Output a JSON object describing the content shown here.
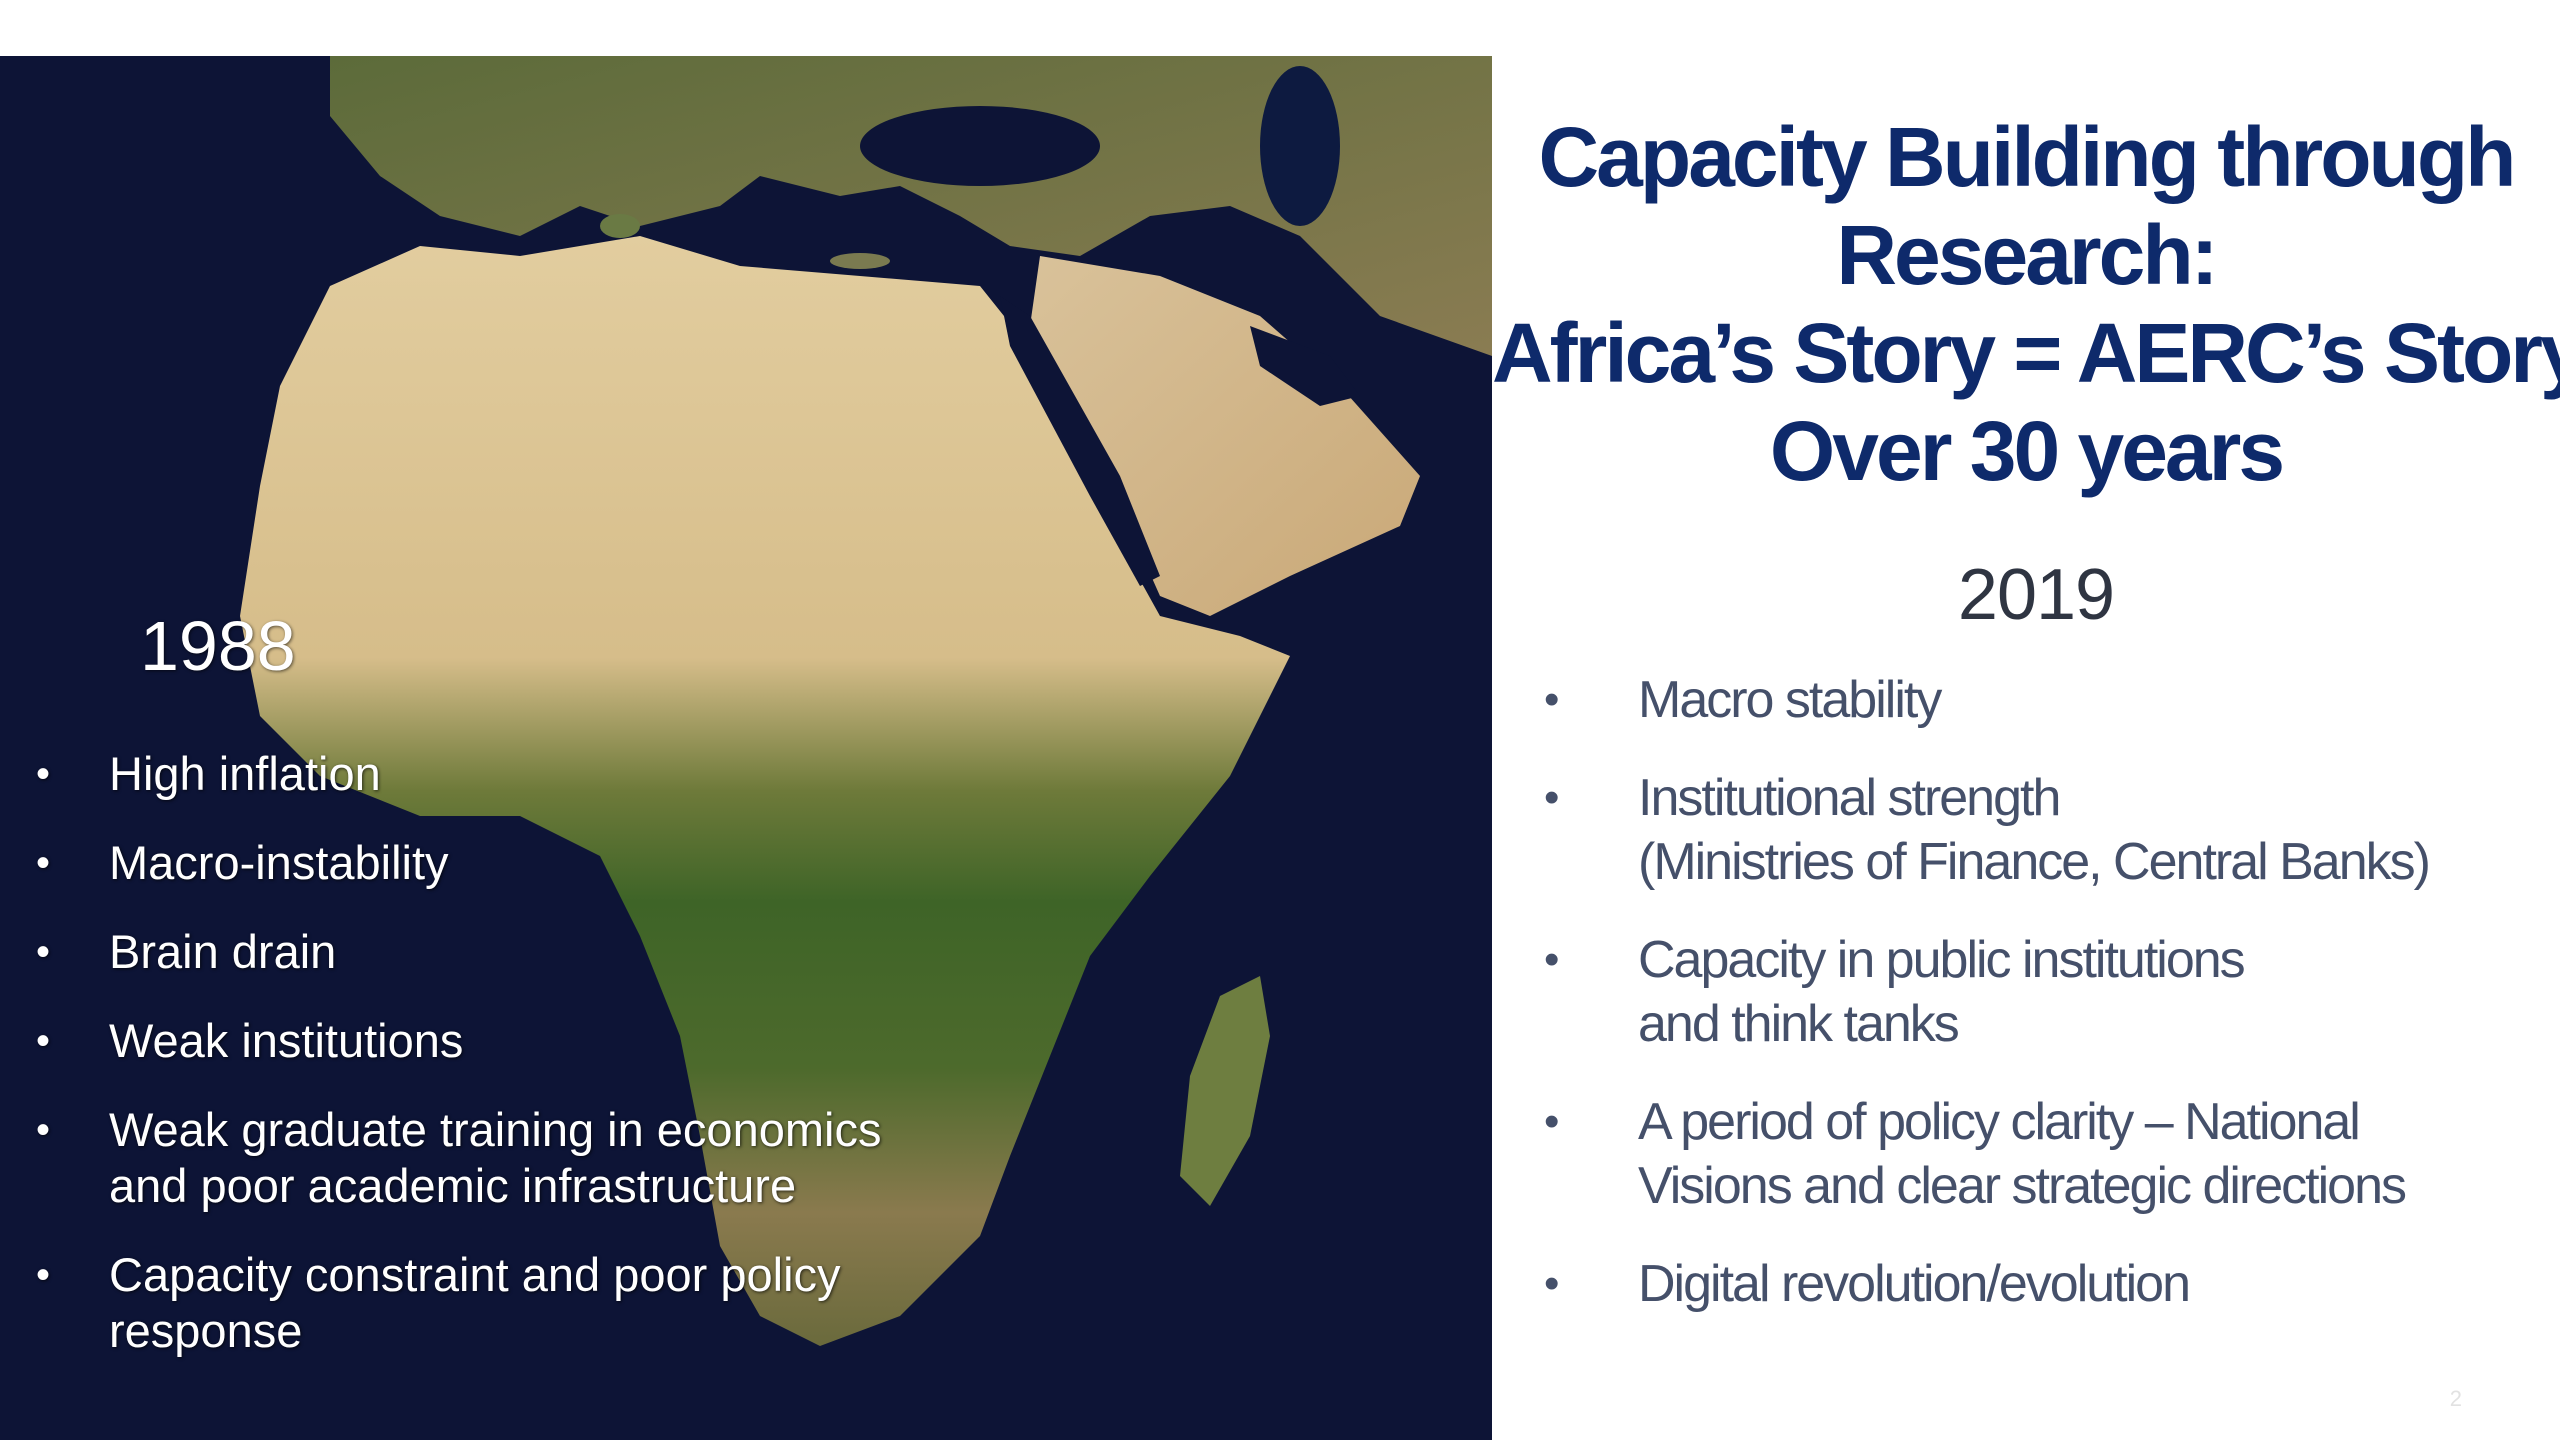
{
  "left": {
    "year": "1988",
    "items": [
      {
        "text": "High inflation"
      },
      {
        "text": "Macro-instability"
      },
      {
        "text": "Brain drain"
      },
      {
        "text": "Weak institutions"
      },
      {
        "text": "Weak graduate training in economics\nand poor academic infrastructure"
      },
      {
        "text": "Capacity constraint and poor policy\nresponse"
      }
    ]
  },
  "right": {
    "title_lines": [
      "Capacity Building through",
      "Research:",
      "Africa’s Story = AERC’s Story",
      "Over 30 years"
    ],
    "year": "2019",
    "items": [
      {
        "text": "Macro stability"
      },
      {
        "text": "Institutional strength\n(Ministries of Finance, Central Banks)"
      },
      {
        "text": "Capacity in public institutions\nand think tanks"
      },
      {
        "text": "A period of policy clarity – National\nVisions and clear strategic directions"
      },
      {
        "text": "Digital revolution/evolution"
      }
    ],
    "page_number": "2"
  },
  "bullet_glyph": "•",
  "colors": {
    "title": "#0e2a6b",
    "ocean": "#0d1436",
    "desert": "#d9c49a",
    "vegetation": "#3f6a2a"
  }
}
